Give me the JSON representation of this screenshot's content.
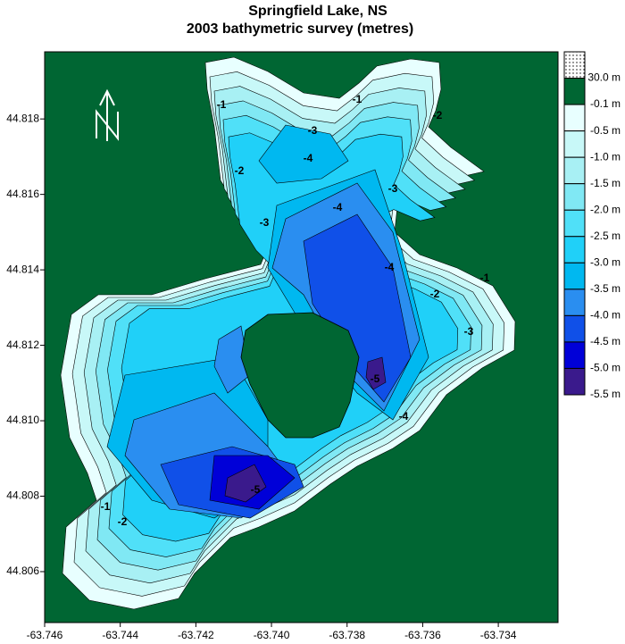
{
  "chart_data": {
    "type": "contour",
    "title": "Springfield Lake, NS",
    "subtitle": "2003 bathymetric survey (metres)",
    "north_label": "N",
    "xlim": [
      -63.746,
      -63.73242
    ],
    "ylim": [
      44.80465,
      44.81978
    ],
    "xticks": [
      -63.746,
      -63.744,
      -63.742,
      {
        "value": -63.74,
        "label": "-63.740"
      },
      -63.738,
      -63.736,
      -63.734
    ],
    "yticks": [
      44.806,
      44.808,
      {
        "value": 44.81,
        "label": "44.810"
      },
      44.812,
      44.814,
      44.816,
      44.818
    ],
    "levels": [
      {
        "value": 30,
        "label": "30.0 m",
        "color": "#ffffff"
      },
      {
        "value": -0.1,
        "label": "-0.1 m",
        "color": "#006633"
      },
      {
        "value": -0.5,
        "label": "-0.5 m",
        "color": "#e8ffff"
      },
      {
        "value": -1,
        "label": "-1.0 m",
        "color": "#c8f8f8"
      },
      {
        "value": -1.5,
        "label": "-1.5 m",
        "color": "#a8f0f4"
      },
      {
        "value": -2,
        "label": "-2.0 m",
        "color": "#80e8f4"
      },
      {
        "value": -2.5,
        "label": "-2.5 m",
        "color": "#50e0f8"
      },
      {
        "value": -3,
        "label": "-3.0 m",
        "color": "#20d0f8"
      },
      {
        "value": -3.5,
        "label": "-3.5 m",
        "color": "#00b8f0"
      },
      {
        "value": -4,
        "label": "-4.0 m",
        "color": "#2a8ef0"
      },
      {
        "value": -4.5,
        "label": "-4.5 m",
        "color": "#1050e8"
      },
      {
        "value": -5,
        "label": "-5.0 m",
        "color": "#0000d8"
      },
      {
        "value": -5.5,
        "label": "-5.5 m",
        "color": "#3a1a8c"
      }
    ],
    "contour_labels": [
      "-1",
      "-2",
      "-3",
      "-4",
      "-3",
      "-4",
      "-1",
      "-2",
      "-3",
      "-4",
      "-5",
      "-1",
      "-2",
      "-3",
      "-4",
      "-5",
      "-2",
      "-1"
    ]
  }
}
